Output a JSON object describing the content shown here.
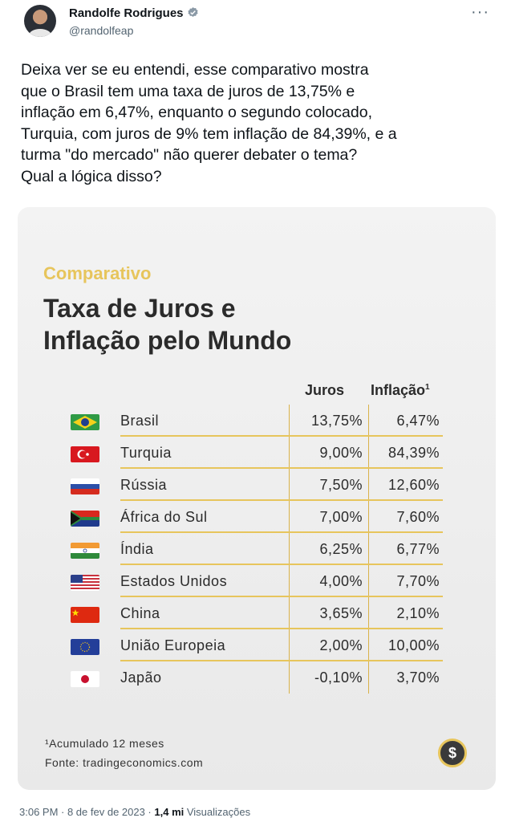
{
  "author": {
    "name": "Randolfe Rodrigues",
    "handle": "@randolfeap",
    "avatar_icon": "avatar"
  },
  "tweet": {
    "lines": [
      "Deixa ver se eu entendi, esse comparativo mostra",
      "que o Brasil tem uma taxa de juros de 13,75% e",
      "inflação em 6,47%, enquanto o segundo colocado,",
      "Turquia, com juros de 9% tem inflação de 84,39%, e a",
      "turma \"do mercado\" não querer debater o tema?",
      "Qual a lógica disso?"
    ]
  },
  "card": {
    "kicker": "Comparativo",
    "title_line1": "Taxa de Juros e",
    "title_line2": "Inflação pelo Mundo",
    "col_juros": "Juros",
    "col_inflacao": "Inflação",
    "col_inflacao_note": "1",
    "rows": [
      {
        "country": "Brasil",
        "juros": "13,75%",
        "inflacao": "6,47%",
        "flag": "brazil-flag"
      },
      {
        "country": "Turquia",
        "juros": "9,00%",
        "inflacao": "84,39%",
        "flag": "turkey-flag"
      },
      {
        "country": "Rússia",
        "juros": "7,50%",
        "inflacao": "12,60%",
        "flag": "russia-flag"
      },
      {
        "country": "África do Sul",
        "juros": "7,00%",
        "inflacao": "7,60%",
        "flag": "south-africa-flag"
      },
      {
        "country": "Índia",
        "juros": "6,25%",
        "inflacao": "6,77%",
        "flag": "india-flag"
      },
      {
        "country": "Estados Unidos",
        "juros": "4,00%",
        "inflacao": "7,70%",
        "flag": "usa-flag"
      },
      {
        "country": "China",
        "juros": "3,65%",
        "inflacao": "2,10%",
        "flag": "china-flag"
      },
      {
        "country": "União Europeia",
        "juros": "2,00%",
        "inflacao": "10,00%",
        "flag": "eu-flag"
      },
      {
        "country": "Japão",
        "juros": "-0,10%",
        "inflacao": "3,70%",
        "flag": "japan-flag"
      }
    ],
    "footnote": "¹Acumulado 12 meses",
    "source": "Fonte: tradingeconomics.com",
    "accent_color": "#e7c55c"
  },
  "meta": {
    "time": "3:06 PM · 8 de fev de 2023 · ",
    "views_count": "1,4 mi",
    "views_label": " Visualizações"
  }
}
